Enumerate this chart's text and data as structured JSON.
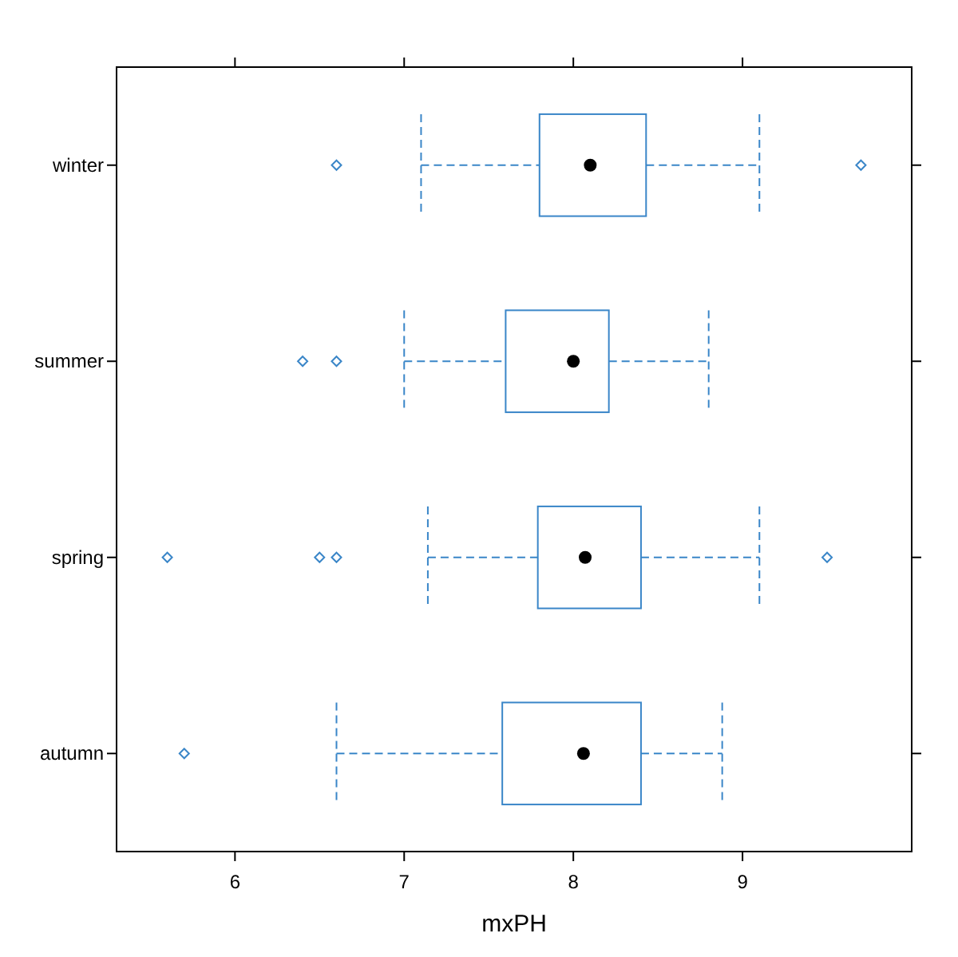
{
  "chart_data": {
    "type": "box",
    "orientation": "horizontal",
    "xlabel": "mxPH",
    "categories": [
      "winter",
      "summer",
      "spring",
      "autumn"
    ],
    "color": "#3a86c8",
    "marker": "diamond",
    "grid": false,
    "xlim": [
      5.3,
      10.0
    ],
    "xticks": [
      6,
      7,
      8,
      9
    ],
    "boxes": [
      {
        "low": 7.1,
        "q1": 7.8,
        "median": 8.1,
        "q3": 8.43,
        "high": 9.1,
        "outliers": [
          6.6,
          9.7
        ]
      },
      {
        "low": 7.0,
        "q1": 7.6,
        "median": 8.0,
        "q3": 8.21,
        "high": 8.8,
        "outliers": [
          6.4,
          6.6
        ]
      },
      {
        "low": 7.14,
        "q1": 7.79,
        "median": 8.07,
        "q3": 8.4,
        "high": 9.1,
        "outliers": [
          5.6,
          6.5,
          6.6,
          9.5
        ]
      },
      {
        "low": 6.6,
        "q1": 7.58,
        "median": 8.06,
        "q3": 8.4,
        "high": 8.88,
        "outliers": [
          5.7
        ]
      }
    ]
  }
}
